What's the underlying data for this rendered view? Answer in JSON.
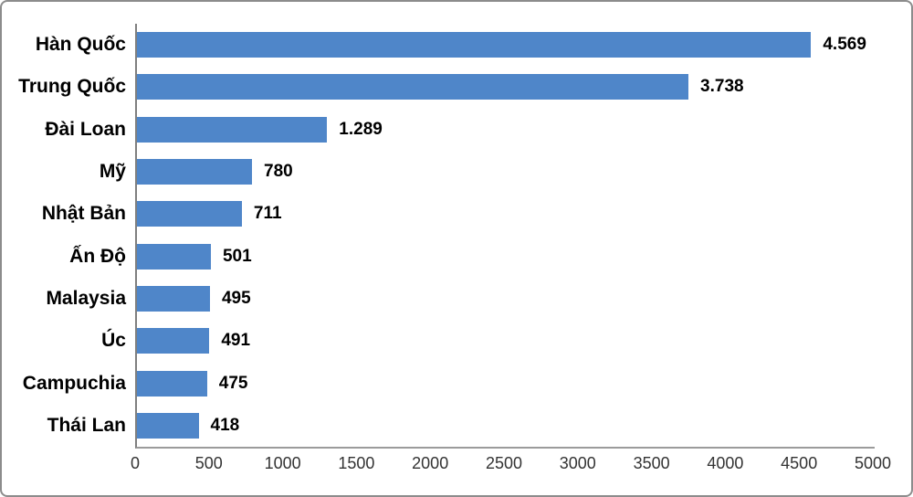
{
  "chart_data": {
    "type": "bar",
    "orientation": "horizontal",
    "title": "",
    "xlabel": "",
    "ylabel": "",
    "categories": [
      "Hàn Quốc",
      "Trung Quốc",
      "Đài Loan",
      "Mỹ",
      "Nhật Bản",
      "Ấn Độ",
      "Malaysia",
      "Úc",
      "Campuchia",
      "Thái Lan"
    ],
    "values": [
      4569,
      3738,
      1289,
      780,
      711,
      501,
      495,
      491,
      475,
      418
    ],
    "value_labels": [
      "4.569",
      "3.738",
      "1.289",
      "780",
      "711",
      "501",
      "495",
      "491",
      "475",
      "418"
    ],
    "x_ticks": [
      "0",
      "500",
      "1000",
      "1500",
      "2000",
      "2500",
      "3000",
      "3500",
      "4000",
      "4500",
      "5000"
    ],
    "xlim": [
      0,
      5000
    ],
    "grid": false,
    "legend": false,
    "colors": {
      "bar": "#4F86C9",
      "axis_vertical": "#7f7f7f",
      "axis_horizontal": "#9b9b9b",
      "category_label": "#000000",
      "value_label": "#000000",
      "tick_label": "#333333",
      "frame_border": "#8c8c8c",
      "background": "#ffffff"
    }
  }
}
